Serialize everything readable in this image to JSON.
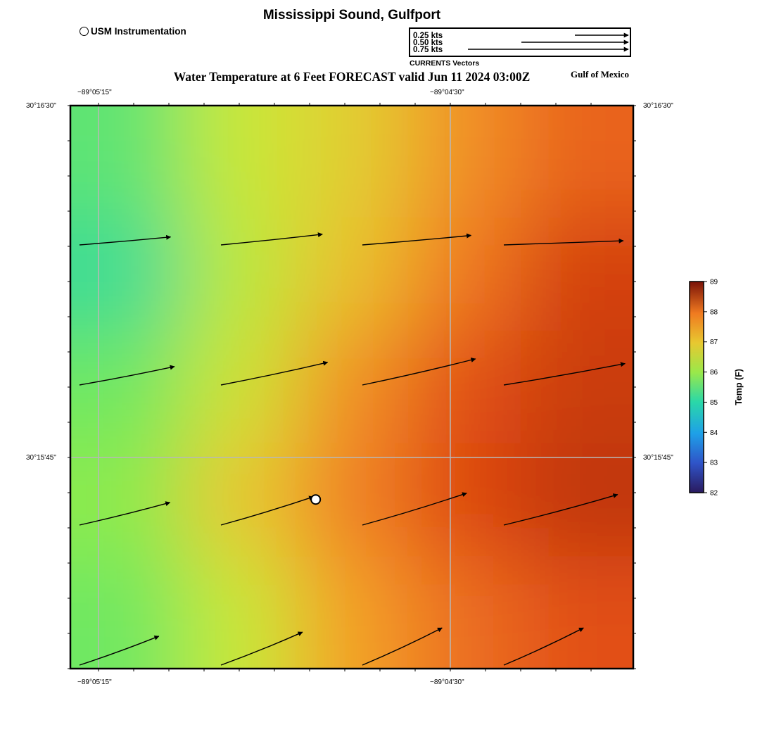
{
  "header": {
    "site_title": "Mississippi Sound, Gulfport",
    "map_title": "Water Temperature at 6 Feet FORECAST valid Jun 11 2024 03:00Z",
    "region_label": "Gulf of Mexico"
  },
  "footer": {
    "site_title": "Mississippi Sound, Gulfport"
  },
  "legend": {
    "station_label": "USM Instrumentation",
    "vector_key": {
      "caption": "CURRENTS Vectors",
      "entries": [
        {
          "label": "0.25 kts",
          "speed": 0.25
        },
        {
          "label": "0.50 kts",
          "speed": 0.5
        },
        {
          "label": "0.75 kts",
          "speed": 0.75
        }
      ]
    }
  },
  "axes": {
    "lon_ticks": [
      "−89°05'15\"",
      "−89°04'30\""
    ],
    "lat_ticks": [
      "30°16'30\"",
      "30°15'45\""
    ]
  },
  "colorbar": {
    "label": "Temp (F)",
    "min": 82,
    "max": 89,
    "ticks": [
      "89",
      "88",
      "87",
      "86",
      "85",
      "84",
      "83",
      "82"
    ]
  },
  "chart_data": {
    "type": "heatmap",
    "variable": "Water Temperature at 6 Feet",
    "units": "F",
    "grid_columns_west_to_east": 5,
    "grid_rows_north_to_south": 5,
    "temperature_grid": [
      [
        85.3,
        86.0,
        86.4,
        87.2,
        87.7
      ],
      [
        85.1,
        85.9,
        86.6,
        87.5,
        88.1
      ],
      [
        85.4,
        86.1,
        87.2,
        87.9,
        88.2
      ],
      [
        85.6,
        86.5,
        87.4,
        88.0,
        88.3
      ],
      [
        85.4,
        86.0,
        87.0,
        87.6,
        87.9
      ]
    ],
    "currents": {
      "columns_west_to_east": 4,
      "rows_north_to_south": 4,
      "vectors": [
        [
          {
            "speed": 0.52,
            "dir": 85
          },
          {
            "speed": 0.58,
            "dir": 84
          },
          {
            "speed": 0.62,
            "dir": 85
          },
          {
            "speed": 0.68,
            "dir": 88
          }
        ],
        [
          {
            "speed": 0.55,
            "dir": 79
          },
          {
            "speed": 0.62,
            "dir": 78
          },
          {
            "speed": 0.66,
            "dir": 77
          },
          {
            "speed": 0.7,
            "dir": 80
          }
        ],
        [
          {
            "speed": 0.53,
            "dir": 76
          },
          {
            "speed": 0.55,
            "dir": 73
          },
          {
            "speed": 0.62,
            "dir": 73
          },
          {
            "speed": 0.67,
            "dir": 75
          }
        ],
        [
          {
            "speed": 0.48,
            "dir": 70
          },
          {
            "speed": 0.5,
            "dir": 68
          },
          {
            "speed": 0.5,
            "dir": 65
          },
          {
            "speed": 0.5,
            "dir": 65
          }
        ]
      ]
    },
    "station": {
      "name": "USM Instrumentation",
      "col": 1.67,
      "row": 2.3
    }
  }
}
